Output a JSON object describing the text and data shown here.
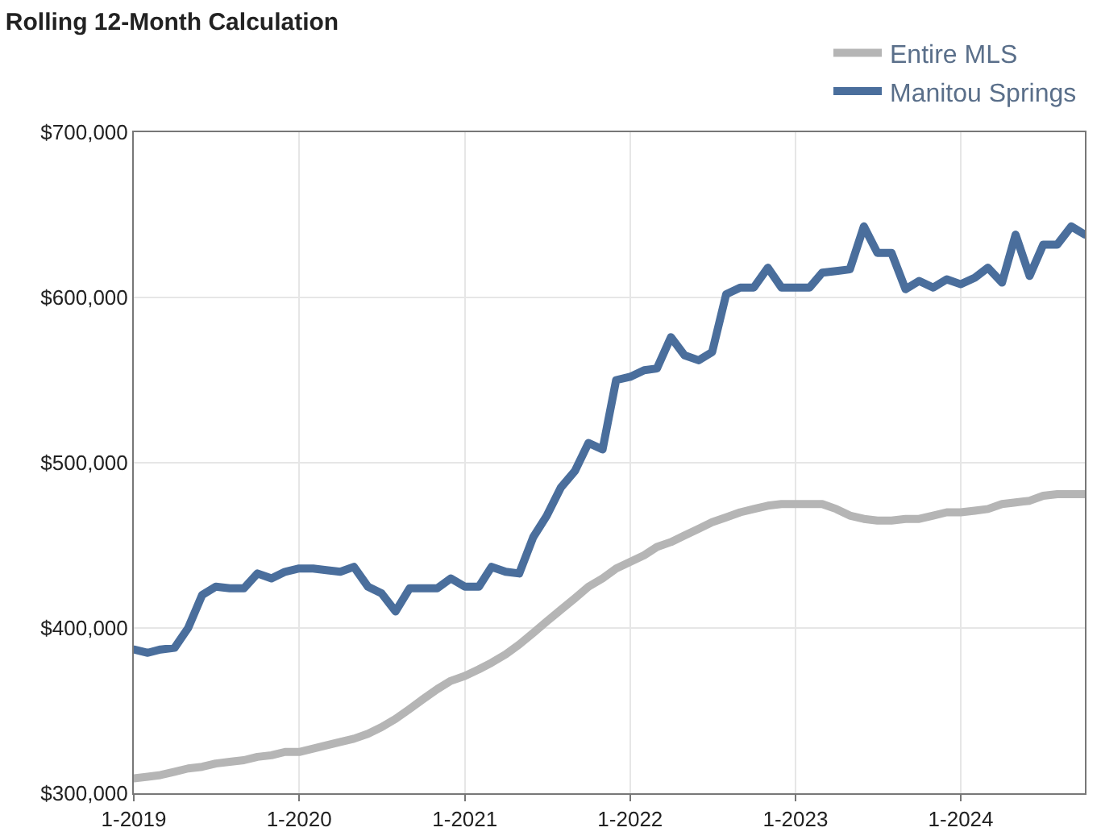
{
  "chart_data": {
    "type": "line",
    "title": "Rolling 12-Month Calculation",
    "x": [
      "2019-01",
      "2019-02",
      "2019-03",
      "2019-04",
      "2019-05",
      "2019-06",
      "2019-07",
      "2019-08",
      "2019-09",
      "2019-10",
      "2019-11",
      "2019-12",
      "2020-01",
      "2020-02",
      "2020-03",
      "2020-04",
      "2020-05",
      "2020-06",
      "2020-07",
      "2020-08",
      "2020-09",
      "2020-10",
      "2020-11",
      "2020-12",
      "2021-01",
      "2021-02",
      "2021-03",
      "2021-04",
      "2021-05",
      "2021-06",
      "2021-07",
      "2021-08",
      "2021-09",
      "2021-10",
      "2021-11",
      "2021-12",
      "2022-01",
      "2022-02",
      "2022-03",
      "2022-04",
      "2022-05",
      "2022-06",
      "2022-07",
      "2022-08",
      "2022-09",
      "2022-10",
      "2022-11",
      "2022-12",
      "2023-01",
      "2023-02",
      "2023-03",
      "2023-04",
      "2023-05",
      "2023-06",
      "2023-07",
      "2023-08",
      "2023-09",
      "2023-10",
      "2023-11",
      "2023-12",
      "2024-01",
      "2024-02",
      "2024-03",
      "2024-04",
      "2024-05",
      "2024-06",
      "2024-07",
      "2024-08",
      "2024-09",
      "2024-10"
    ],
    "series": [
      {
        "name": "Entire MLS",
        "color": "#b5b5b5",
        "values": [
          309000,
          310000,
          311000,
          313000,
          315000,
          316000,
          318000,
          319000,
          320000,
          322000,
          323000,
          325000,
          325000,
          327000,
          329000,
          331000,
          333000,
          336000,
          340000,
          345000,
          351000,
          357000,
          363000,
          368000,
          371000,
          375000,
          379000,
          384000,
          390000,
          397000,
          404000,
          411000,
          418000,
          425000,
          430000,
          436000,
          440000,
          444000,
          449000,
          452000,
          456000,
          460000,
          464000,
          467000,
          470000,
          472000,
          474000,
          475000,
          475000,
          475000,
          475000,
          472000,
          468000,
          466000,
          465000,
          465000,
          466000,
          466000,
          468000,
          470000,
          470000,
          471000,
          472000,
          475000,
          476000,
          477000,
          480000,
          481000,
          481000,
          481000
        ]
      },
      {
        "name": "Manitou Springs",
        "color": "#4a6e9c",
        "values": [
          387000,
          385000,
          387000,
          388000,
          400000,
          420000,
          425000,
          424000,
          424000,
          433000,
          430000,
          434000,
          436000,
          436000,
          435000,
          434000,
          437000,
          425000,
          421000,
          410000,
          424000,
          424000,
          424000,
          430000,
          425000,
          425000,
          437000,
          434000,
          433000,
          455000,
          468000,
          485000,
          495000,
          512000,
          508000,
          550000,
          552000,
          556000,
          557000,
          576000,
          565000,
          562000,
          567000,
          602000,
          606000,
          606000,
          618000,
          606000,
          606000,
          606000,
          615000,
          616000,
          617000,
          643000,
          627000,
          627000,
          605000,
          610000,
          606000,
          611000,
          608000,
          612000,
          618000,
          609000,
          638000,
          613000,
          632000,
          632000,
          643000,
          638000
        ]
      }
    ],
    "xlim": [
      "2019-01-01",
      "2024-10-01"
    ],
    "xticks": [
      {
        "value": "2019-01-01",
        "label": "1-2019"
      },
      {
        "value": "2020-01-01",
        "label": "1-2020"
      },
      {
        "value": "2021-01-01",
        "label": "1-2021"
      },
      {
        "value": "2022-01-01",
        "label": "1-2022"
      },
      {
        "value": "2023-01-01",
        "label": "1-2023"
      },
      {
        "value": "2024-01-01",
        "label": "1-2024"
      }
    ],
    "ylim": [
      300000,
      700000
    ],
    "yticks": [
      {
        "value": 300000,
        "label": "$300,000"
      },
      {
        "value": 400000,
        "label": "$400,000"
      },
      {
        "value": 500000,
        "label": "$500,000"
      },
      {
        "value": 600000,
        "label": "$600,000"
      },
      {
        "value": 700000,
        "label": "$700,000"
      }
    ],
    "grid": true,
    "legend": "top right",
    "line_style": "solid",
    "marker": "none"
  }
}
